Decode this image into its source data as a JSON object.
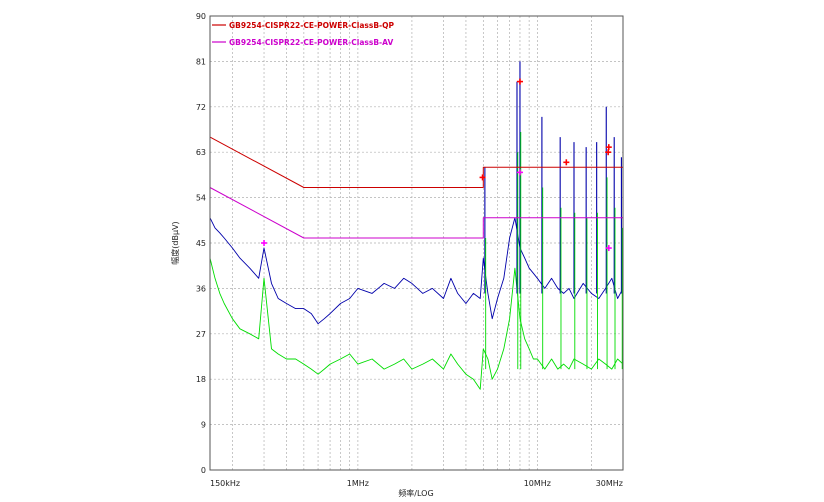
{
  "chart_data": {
    "type": "line",
    "title": "",
    "xlabel": "频率/LOG",
    "ylabel": "幅度(dBμV)",
    "x_scale": "log",
    "xlim": [
      0.15,
      30
    ],
    "ylim": [
      0,
      90
    ],
    "y_ticks": [
      "0",
      "9",
      "18",
      "27",
      "36",
      "45",
      "54",
      "63",
      "72",
      "81",
      "90"
    ],
    "x_ticks": [
      {
        "value": 0.15,
        "label": "150kHz"
      },
      {
        "value": 1,
        "label": "1MHz"
      },
      {
        "value": 10,
        "label": "10MHz"
      },
      {
        "value": 30,
        "label": "30MHz"
      }
    ],
    "grid": true,
    "legend_position": "top-left",
    "series": [
      {
        "name": "GB9254-CISPR22-CE-POWER-ClassB-QP",
        "role": "limit",
        "color": "#cc0000",
        "x": [
          0.15,
          0.5,
          0.5,
          5,
          5,
          30
        ],
        "y": [
          66,
          56,
          56,
          56,
          60,
          60
        ]
      },
      {
        "name": "GB9254-CISPR22-CE-POWER-ClassB-AV",
        "role": "limit",
        "color": "#cc00cc",
        "x": [
          0.15,
          0.5,
          0.5,
          5,
          5,
          30
        ],
        "y": [
          56,
          46,
          46,
          46,
          50,
          50
        ]
      },
      {
        "name": "",
        "role": "peak-trace",
        "color": "#0000aa",
        "x": [
          0.15,
          0.16,
          0.17,
          0.18,
          0.2,
          0.22,
          0.25,
          0.28,
          0.3,
          0.33,
          0.36,
          0.4,
          0.45,
          0.5,
          0.55,
          0.6,
          0.65,
          0.7,
          0.8,
          0.9,
          1.0,
          1.2,
          1.4,
          1.6,
          1.8,
          2.0,
          2.3,
          2.6,
          3.0,
          3.3,
          3.6,
          4.0,
          4.4,
          4.8,
          5.0,
          5.3,
          5.6,
          6.0,
          6.5,
          7.0,
          7.5,
          8.0,
          8.5,
          9.0,
          9.5,
          10,
          11,
          12,
          13,
          14,
          15,
          16,
          18,
          20,
          22,
          24,
          26,
          28,
          30
        ],
        "y": [
          50,
          48,
          47,
          46,
          44,
          42,
          40,
          38,
          44,
          37,
          34,
          33,
          32,
          32,
          31,
          29,
          30,
          31,
          33,
          34,
          36,
          35,
          37,
          36,
          38,
          37,
          35,
          36,
          34,
          38,
          35,
          33,
          35,
          34,
          42,
          35,
          30,
          34,
          38,
          46,
          50,
          44,
          42,
          40,
          39,
          38,
          36,
          38,
          36,
          35,
          36,
          34,
          37,
          35,
          34,
          36,
          38,
          34,
          36
        ]
      },
      {
        "name": "",
        "role": "average-trace",
        "color": "#00dd00",
        "x": [
          0.15,
          0.16,
          0.17,
          0.18,
          0.2,
          0.22,
          0.25,
          0.28,
          0.3,
          0.33,
          0.36,
          0.4,
          0.45,
          0.5,
          0.55,
          0.6,
          0.65,
          0.7,
          0.8,
          0.9,
          1.0,
          1.2,
          1.4,
          1.6,
          1.8,
          2.0,
          2.3,
          2.6,
          3.0,
          3.3,
          3.6,
          4.0,
          4.4,
          4.8,
          5.0,
          5.3,
          5.6,
          6.0,
          6.5,
          7.0,
          7.5,
          8.0,
          8.5,
          9.0,
          9.5,
          10,
          11,
          12,
          13,
          14,
          15,
          16,
          18,
          20,
          22,
          24,
          26,
          28,
          30
        ],
        "y": [
          42,
          38,
          35,
          33,
          30,
          28,
          27,
          26,
          38,
          24,
          23,
          22,
          22,
          21,
          20,
          19,
          20,
          21,
          22,
          23,
          21,
          22,
          20,
          21,
          22,
          20,
          21,
          22,
          20,
          23,
          21,
          19,
          18,
          16,
          24,
          22,
          18,
          20,
          24,
          30,
          40,
          30,
          26,
          24,
          22,
          22,
          20,
          22,
          20,
          21,
          20,
          22,
          21,
          20,
          22,
          21,
          20,
          22,
          21
        ]
      }
    ],
    "spikes": [
      {
        "x": 5.1,
        "y": 60
      },
      {
        "x": 7.7,
        "y": 77
      },
      {
        "x": 8.0,
        "y": 81
      },
      {
        "x": 10.6,
        "y": 70
      },
      {
        "x": 13.4,
        "y": 66
      },
      {
        "x": 16.0,
        "y": 65
      },
      {
        "x": 18.7,
        "y": 64
      },
      {
        "x": 21.4,
        "y": 65
      },
      {
        "x": 24.2,
        "y": 72
      },
      {
        "x": 26.8,
        "y": 66
      },
      {
        "x": 29.4,
        "y": 62
      }
    ],
    "markers": [
      {
        "kind": "qp",
        "color": "#ff0000",
        "x": 4.95,
        "y": 58
      },
      {
        "kind": "qp",
        "color": "#ff0000",
        "x": 8.0,
        "y": 77
      },
      {
        "kind": "qp",
        "color": "#ff0000",
        "x": 14.5,
        "y": 61
      },
      {
        "kind": "qp",
        "color": "#ff0000",
        "x": 25.0,
        "y": 64
      },
      {
        "kind": "qp",
        "color": "#ff0000",
        "x": 24.8,
        "y": 63
      },
      {
        "kind": "av",
        "color": "#ff00ff",
        "x": 0.3,
        "y": 45
      },
      {
        "kind": "av",
        "color": "#ff00ff",
        "x": 8.0,
        "y": 59
      },
      {
        "kind": "av",
        "color": "#ff00ff",
        "x": 25.0,
        "y": 44
      }
    ]
  }
}
